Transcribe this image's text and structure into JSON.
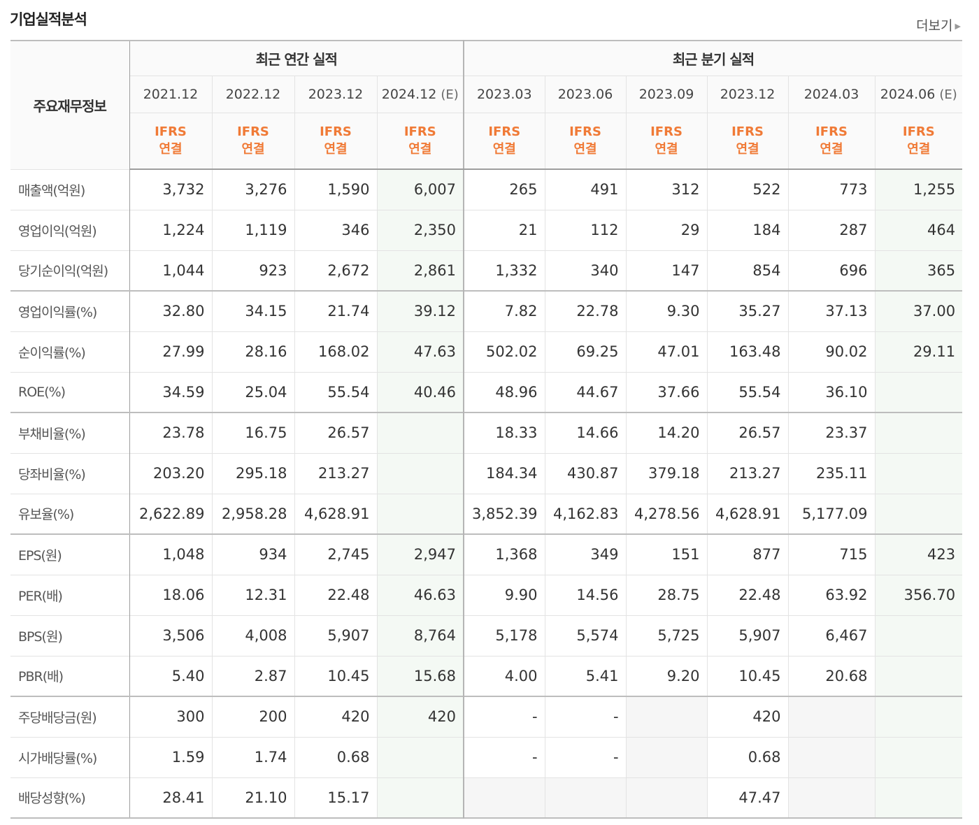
{
  "section_title": "기업실적분석",
  "more_link": "더보기",
  "table": {
    "corner_label": "주요재무정보",
    "group_headers": {
      "annual": "최근 연간 실적",
      "quarterly": "최근 분기 실적"
    },
    "periods": [
      "2021.12",
      "2022.12",
      "2023.12",
      "2024.12",
      "2023.03",
      "2023.06",
      "2023.09",
      "2023.12",
      "2024.03",
      "2024.06"
    ],
    "estimate_tag": "(E)",
    "accounting": {
      "line1": "IFRS",
      "line2": "연결"
    },
    "rows": [
      {
        "label": "매출액(억원)",
        "values": [
          "3,732",
          "3,276",
          "1,590",
          "6,007",
          "265",
          "491",
          "312",
          "522",
          "773",
          "1,255"
        ]
      },
      {
        "label": "영업이익(억원)",
        "values": [
          "1,224",
          "1,119",
          "346",
          "2,350",
          "21",
          "112",
          "29",
          "184",
          "287",
          "464"
        ]
      },
      {
        "label": "당기순이익(억원)",
        "values": [
          "1,044",
          "923",
          "2,672",
          "2,861",
          "1,332",
          "340",
          "147",
          "854",
          "696",
          "365"
        ]
      },
      {
        "label": "영업이익률(%)",
        "values": [
          "32.80",
          "34.15",
          "21.74",
          "39.12",
          "7.82",
          "22.78",
          "9.30",
          "35.27",
          "37.13",
          "37.00"
        ]
      },
      {
        "label": "순이익률(%)",
        "values": [
          "27.99",
          "28.16",
          "168.02",
          "47.63",
          "502.02",
          "69.25",
          "47.01",
          "163.48",
          "90.02",
          "29.11"
        ]
      },
      {
        "label": "ROE(%)",
        "values": [
          "34.59",
          "25.04",
          "55.54",
          "40.46",
          "48.96",
          "44.67",
          "37.66",
          "55.54",
          "36.10",
          ""
        ]
      },
      {
        "label": "부채비율(%)",
        "values": [
          "23.78",
          "16.75",
          "26.57",
          "",
          "18.33",
          "14.66",
          "14.20",
          "26.57",
          "23.37",
          ""
        ]
      },
      {
        "label": "당좌비율(%)",
        "values": [
          "203.20",
          "295.18",
          "213.27",
          "",
          "184.34",
          "430.87",
          "379.18",
          "213.27",
          "235.11",
          ""
        ]
      },
      {
        "label": "유보율(%)",
        "values": [
          "2,622.89",
          "2,958.28",
          "4,628.91",
          "",
          "3,852.39",
          "4,162.83",
          "4,278.56",
          "4,628.91",
          "5,177.09",
          ""
        ]
      },
      {
        "label": "EPS(원)",
        "values": [
          "1,048",
          "934",
          "2,745",
          "2,947",
          "1,368",
          "349",
          "151",
          "877",
          "715",
          "423"
        ]
      },
      {
        "label": "PER(배)",
        "values": [
          "18.06",
          "12.31",
          "22.48",
          "46.63",
          "9.90",
          "14.56",
          "28.75",
          "22.48",
          "63.92",
          "356.70"
        ]
      },
      {
        "label": "BPS(원)",
        "values": [
          "3,506",
          "4,008",
          "5,907",
          "8,764",
          "5,178",
          "5,574",
          "5,725",
          "5,907",
          "6,467",
          ""
        ]
      },
      {
        "label": "PBR(배)",
        "values": [
          "5.40",
          "2.87",
          "10.45",
          "15.68",
          "4.00",
          "5.41",
          "9.20",
          "10.45",
          "20.68",
          ""
        ]
      },
      {
        "label": "주당배당금(원)",
        "values": [
          "300",
          "200",
          "420",
          "420",
          "-",
          "-",
          "",
          "420",
          "",
          ""
        ]
      },
      {
        "label": "시가배당률(%)",
        "values": [
          "1.59",
          "1.74",
          "0.68",
          "",
          "-",
          "-",
          "",
          "0.68",
          "",
          ""
        ]
      },
      {
        "label": "배당성향(%)",
        "values": [
          "28.41",
          "21.10",
          "15.17",
          "",
          "",
          "",
          "",
          "47.47",
          "",
          ""
        ]
      }
    ]
  }
}
